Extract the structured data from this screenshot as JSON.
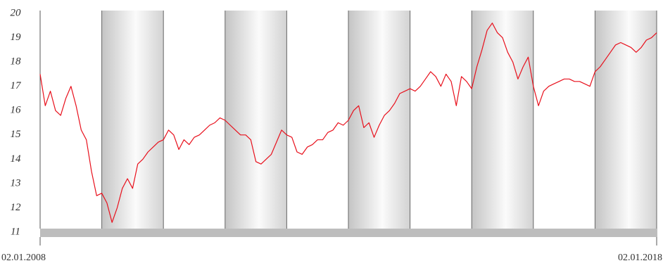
{
  "chart_data": {
    "type": "line",
    "categories": [
      "02.01.2008",
      null,
      null,
      null,
      null,
      null,
      null,
      null,
      null,
      null,
      null,
      null,
      null,
      null,
      null,
      null,
      null,
      null,
      null,
      null,
      null,
      null,
      null,
      null,
      null,
      null,
      null,
      null,
      null,
      null,
      null,
      null,
      null,
      null,
      null,
      null,
      null,
      null,
      null,
      null,
      null,
      null,
      null,
      null,
      null,
      null,
      null,
      null,
      null,
      null,
      null,
      null,
      null,
      null,
      null,
      null,
      null,
      null,
      null,
      null,
      null,
      null,
      null,
      null,
      null,
      null,
      null,
      null,
      null,
      null,
      null,
      null,
      null,
      null,
      null,
      null,
      null,
      null,
      null,
      null,
      null,
      null,
      null,
      null,
      null,
      null,
      null,
      null,
      null,
      null,
      null,
      null,
      null,
      null,
      null,
      null,
      null,
      null,
      null,
      null,
      null,
      null,
      null,
      null,
      null,
      null,
      null,
      null,
      null,
      null,
      null,
      null,
      null,
      null,
      null,
      null,
      null,
      null,
      null,
      null,
      "02.01.2018"
    ],
    "values": [
      17.5,
      16.2,
      16.8,
      16.0,
      15.8,
      16.5,
      17.0,
      16.2,
      15.2,
      14.8,
      13.5,
      12.5,
      12.6,
      12.2,
      11.4,
      12.0,
      12.8,
      13.2,
      12.8,
      13.8,
      14.0,
      14.3,
      14.5,
      14.7,
      14.8,
      15.2,
      15.0,
      14.4,
      14.8,
      14.6,
      14.9,
      15.0,
      15.2,
      15.4,
      15.5,
      15.7,
      15.6,
      15.4,
      15.2,
      15.0,
      15.0,
      14.8,
      13.9,
      13.8,
      14.0,
      14.2,
      14.7,
      15.2,
      15.0,
      14.9,
      14.3,
      14.2,
      14.5,
      14.6,
      14.8,
      14.8,
      15.1,
      15.2,
      15.5,
      15.4,
      15.6,
      16.0,
      16.2,
      15.3,
      15.5,
      14.9,
      15.4,
      15.8,
      16.0,
      16.3,
      16.7,
      16.8,
      16.9,
      16.8,
      17.0,
      17.3,
      17.6,
      17.4,
      17.0,
      17.5,
      17.2,
      16.2,
      17.4,
      17.2,
      16.9,
      17.8,
      18.5,
      19.3,
      19.6,
      19.2,
      19.0,
      18.4,
      18.0,
      17.3,
      17.8,
      18.2,
      17.0,
      16.2,
      16.8,
      17.0,
      17.1,
      17.2,
      17.3,
      17.3,
      17.2,
      17.2,
      17.1,
      17.0,
      17.6,
      17.8,
      18.1,
      18.4,
      18.7,
      18.8,
      18.7,
      18.6,
      18.4,
      18.6,
      18.9,
      19.0,
      19.2
    ],
    "color": "#e8101c",
    "ylim": [
      11,
      20
    ],
    "yticks": [
      11,
      12,
      13,
      14,
      15,
      16,
      17,
      18,
      19,
      20
    ]
  }
}
